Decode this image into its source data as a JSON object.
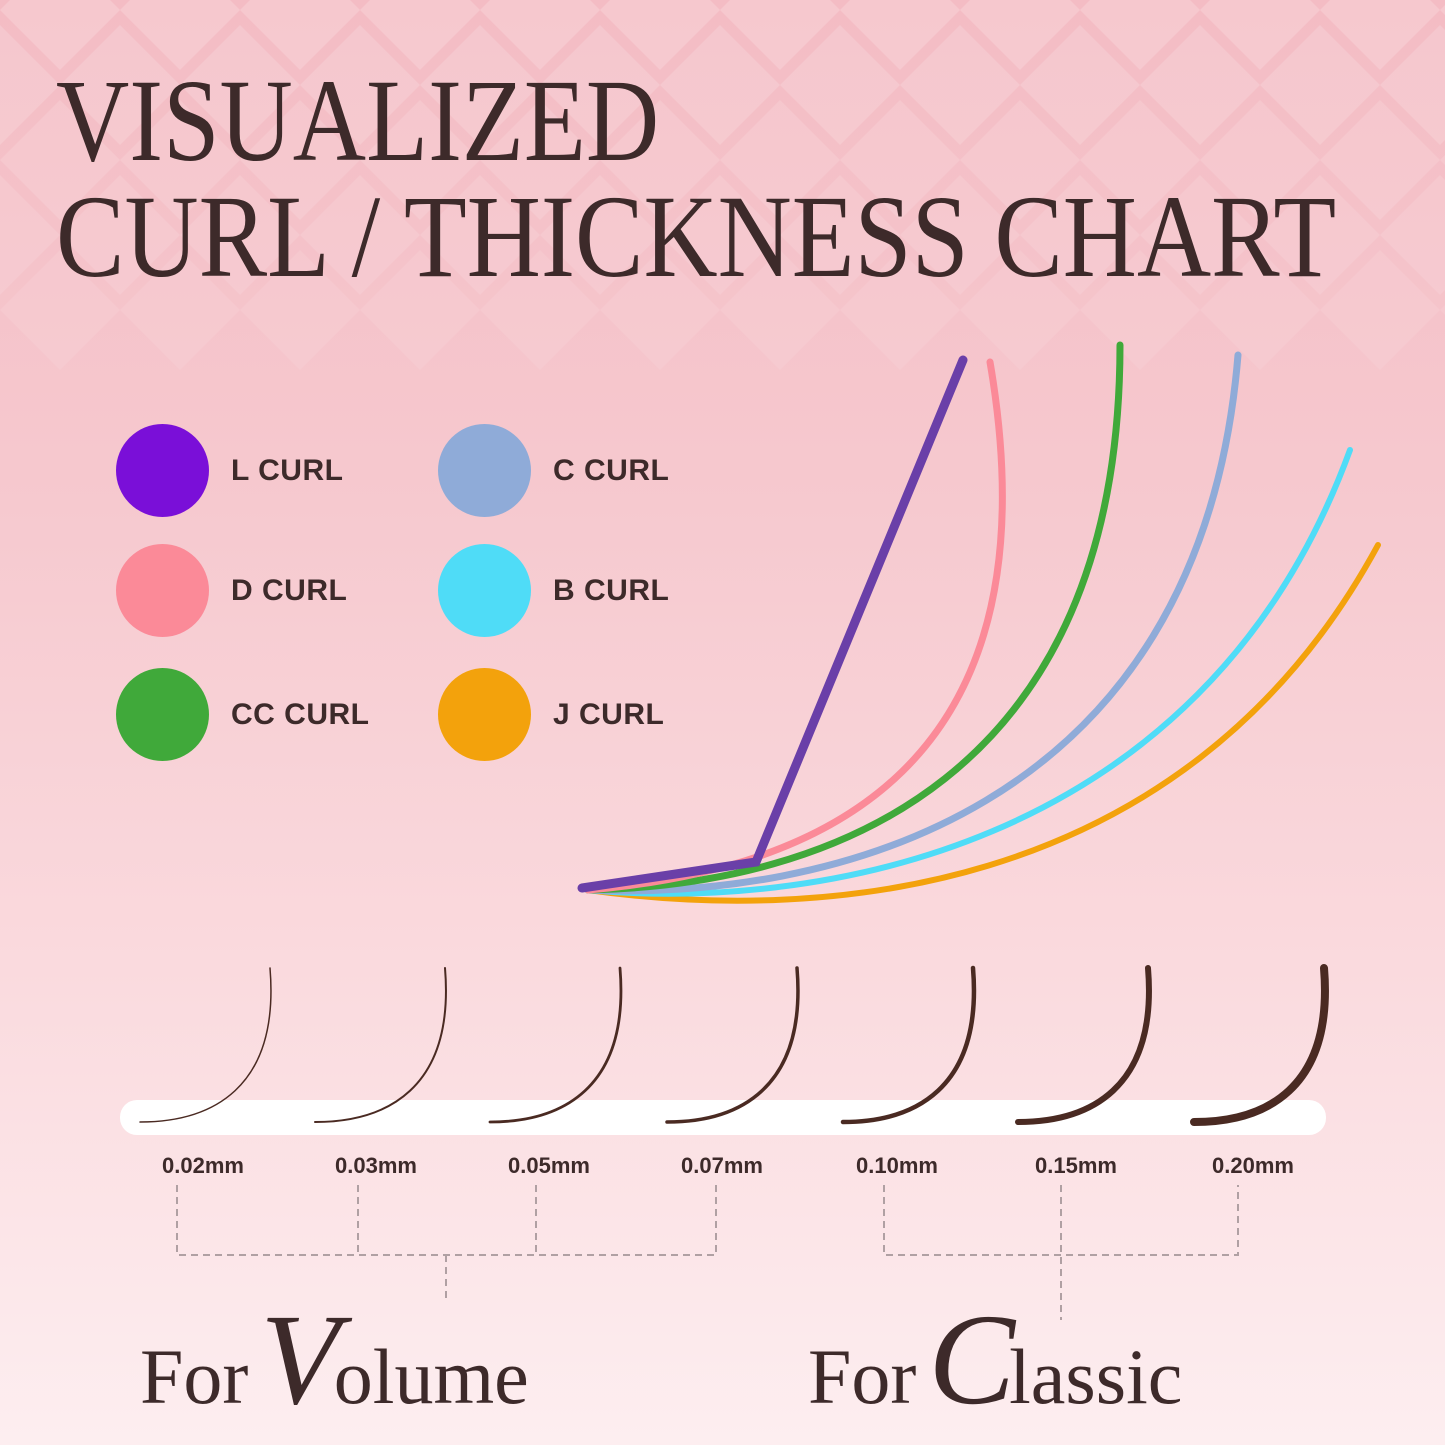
{
  "title": {
    "line1": "VISUALIZED",
    "line2": "CURL / THICKNESS CHART"
  },
  "legend": [
    {
      "label": "L CURL",
      "color": "#7a0fd8"
    },
    {
      "label": "D CURL",
      "color": "#fb8a98"
    },
    {
      "label": "CC CURL",
      "color": "#40a93a"
    },
    {
      "label": "C CURL",
      "color": "#8fabd8"
    },
    {
      "label": "B CURL",
      "color": "#4fdcf7"
    },
    {
      "label": "J CURL",
      "color": "#f3a20c"
    }
  ],
  "thickness": [
    "0.02mm",
    "0.03mm",
    "0.05mm",
    "0.07mm",
    "0.10mm",
    "0.15mm",
    "0.20mm"
  ],
  "groups": {
    "volume": {
      "prefix": "For",
      "initial": "V",
      "rest": "olume"
    },
    "classic": {
      "prefix": "For",
      "initial": "C",
      "rest": "lassic"
    }
  },
  "colors": {
    "text": "#3d2a2a",
    "lash": "#4a2a22",
    "bar": "#ffffff"
  }
}
